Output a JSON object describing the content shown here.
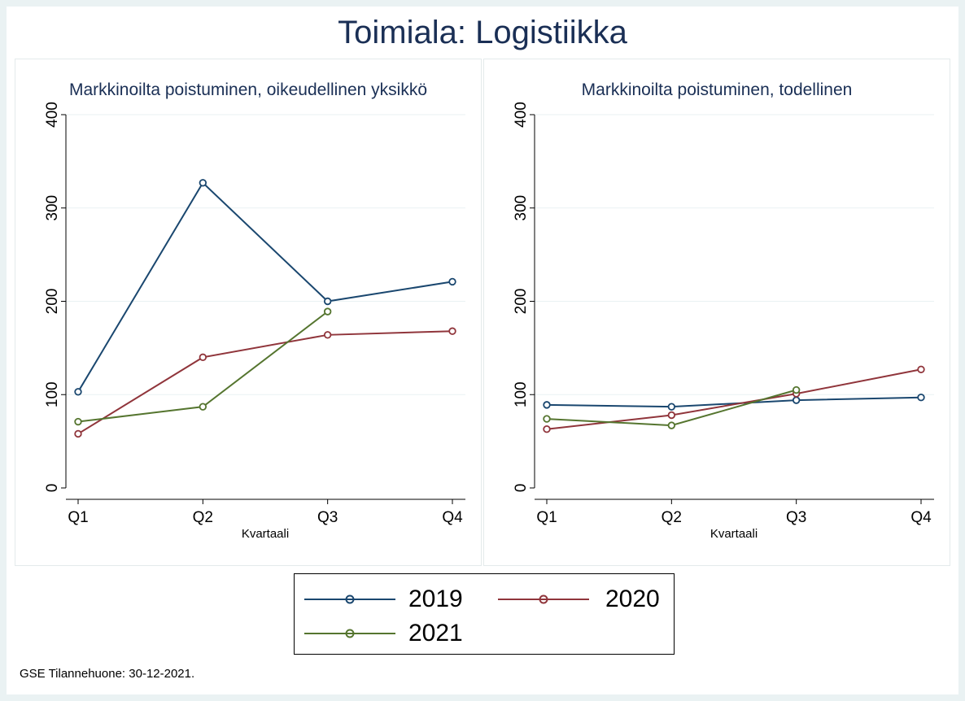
{
  "title": "Toimiala: Logistiikka",
  "footer": "GSE Tilannehuone: 30-12-2021.",
  "colors": {
    "2019": "#1a476f",
    "2020": "#90353b",
    "2021": "#55752f"
  },
  "legend": [
    {
      "label": "2019",
      "color": "#1a476f"
    },
    {
      "label": "2020",
      "color": "#90353b"
    },
    {
      "label": "2021",
      "color": "#55752f"
    }
  ],
  "chart_data": [
    {
      "type": "line",
      "title": "Markkinoilta poistuminen, oikeudellinen yksikkö",
      "xlabel": "Kvartaali",
      "ylabel": "",
      "categories": [
        "Q1",
        "Q2",
        "Q3",
        "Q4"
      ],
      "yticks": [
        0,
        100,
        200,
        300,
        400
      ],
      "ylim": [
        0,
        400
      ],
      "series": [
        {
          "name": "2019",
          "values": [
            103,
            327,
            200,
            221
          ]
        },
        {
          "name": "2020",
          "values": [
            58,
            140,
            164,
            168
          ]
        },
        {
          "name": "2021",
          "values": [
            71,
            87,
            189,
            null
          ]
        }
      ]
    },
    {
      "type": "line",
      "title": "Markkinoilta poistuminen, todellinen",
      "xlabel": "Kvartaali",
      "ylabel": "",
      "categories": [
        "Q1",
        "Q2",
        "Q3",
        "Q4"
      ],
      "yticks": [
        0,
        100,
        200,
        300,
        400
      ],
      "ylim": [
        0,
        400
      ],
      "series": [
        {
          "name": "2019",
          "values": [
            89,
            87,
            94,
            97
          ]
        },
        {
          "name": "2020",
          "values": [
            63,
            78,
            101,
            127
          ]
        },
        {
          "name": "2021",
          "values": [
            74,
            67,
            105,
            null
          ]
        }
      ]
    }
  ]
}
